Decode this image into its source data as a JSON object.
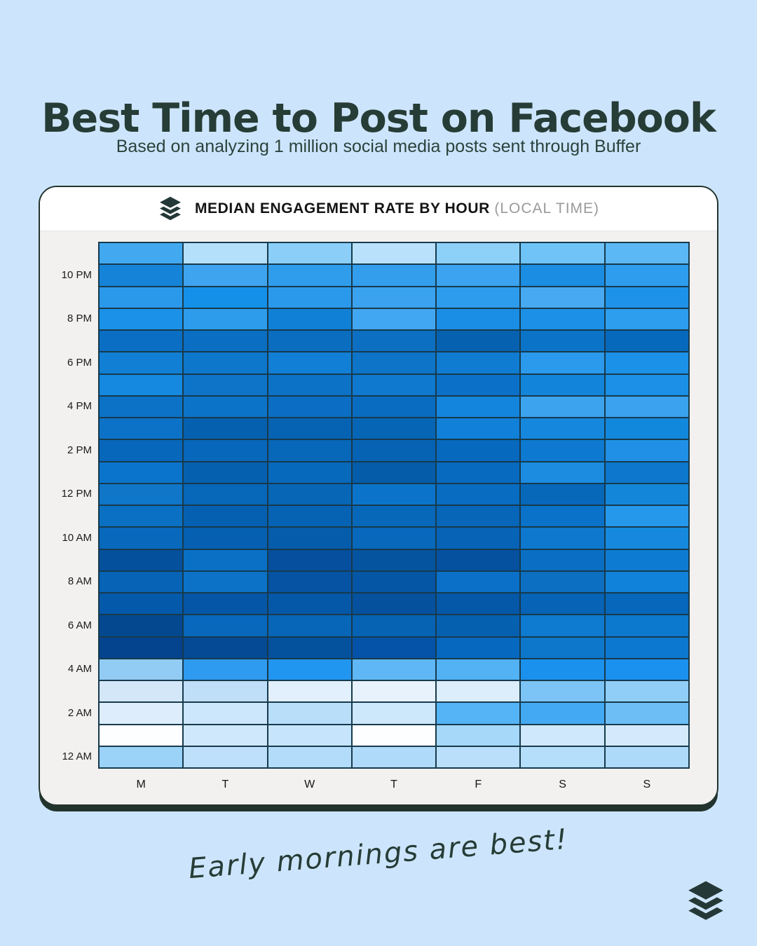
{
  "page": {
    "title": "Best Time to Post on Facebook",
    "subtitle": "Based on analyzing 1 million social media posts sent through Buffer",
    "footer_note": "Early mornings are best!"
  },
  "card_header": {
    "logo_icon": "buffer-layers-icon",
    "title": "MEDIAN ENGAGEMENT RATE BY HOUR",
    "title_suffix": "(LOCAL TIME)"
  },
  "colors": {
    "page_bg": "#cde5fc",
    "ink": "#263c36",
    "card_bg": "#f2f1ef",
    "card_header_bg": "#ffffff",
    "card_outline": "#22332e",
    "grid_line": "#173a4d",
    "logo": "#243837"
  },
  "chart_data": {
    "type": "heatmap",
    "title": "MEDIAN ENGAGEMENT RATE BY HOUR (LOCAL TIME)",
    "x_labels": [
      "M",
      "T",
      "W",
      "T",
      "F",
      "S",
      "S"
    ],
    "row_count": 24,
    "y_ticks": [
      {
        "row": 1,
        "label": "10 PM"
      },
      {
        "row": 3,
        "label": "8 PM"
      },
      {
        "row": 5,
        "label": "6 PM"
      },
      {
        "row": 7,
        "label": "4 PM"
      },
      {
        "row": 9,
        "label": "2 PM"
      },
      {
        "row": 11,
        "label": "12 PM"
      },
      {
        "row": 13,
        "label": "10 AM"
      },
      {
        "row": 15,
        "label": "8 AM"
      },
      {
        "row": 17,
        "label": "6 AM"
      },
      {
        "row": 19,
        "label": "4 AM"
      },
      {
        "row": 21,
        "label": "2 AM"
      },
      {
        "row": 23,
        "label": "12 AM"
      }
    ],
    "grid_colors": [
      [
        "#42a9f1",
        "#b5e0fb",
        "#8bcff8",
        "#b9e1fb",
        "#8dd1f8",
        "#6fc3f6",
        "#5bb8f4"
      ],
      [
        "#1584d8",
        "#3fa4ef",
        "#2f9dec",
        "#339eec",
        "#3ba3ef",
        "#1b8de2",
        "#2e9ded"
      ],
      [
        "#2b99ea",
        "#1590e8",
        "#2b99eb",
        "#3aa2ee",
        "#2d9cec",
        "#47a9f1",
        "#1e92e8"
      ],
      [
        "#1b91e8",
        "#2d9ceb",
        "#0f80d6",
        "#42a7f3",
        "#1a8ee4",
        "#1c90e6",
        "#2d9ded"
      ],
      [
        "#0a6fc4",
        "#0a6ec2",
        "#0a6dc0",
        "#0c6fc2",
        "#0662b0",
        "#0c74c8",
        "#0769bc"
      ],
      [
        "#117fd4",
        "#0d77cc",
        "#117fd6",
        "#0d74c8",
        "#0f7cd2",
        "#2b99ec",
        "#1b91e8"
      ],
      [
        "#1588e0",
        "#0d74c8",
        "#0c72c6",
        "#0e79ce",
        "#0b71c8",
        "#1285da",
        "#1b90e6"
      ],
      [
        "#0b72c6",
        "#0c74c8",
        "#0b6ec4",
        "#0a6cc0",
        "#1485dd",
        "#3ca4ef",
        "#3aa2ee"
      ],
      [
        "#0c72c8",
        "#0660b0",
        "#0663b4",
        "#0765b6",
        "#1080d8",
        "#1588de",
        "#1288dd"
      ],
      [
        "#0767ba",
        "#0767ba",
        "#0767b8",
        "#0663b4",
        "#0769be",
        "#0d79d0",
        "#1f90e5"
      ],
      [
        "#0a74cc",
        "#0660b0",
        "#0769bc",
        "#055ca9",
        "#086abe",
        "#1b8ce0",
        "#0c77cc"
      ],
      [
        "#0f76c8",
        "#0767b8",
        "#0766b6",
        "#0b74ca",
        "#086cc0",
        "#0768ba",
        "#1486da"
      ],
      [
        "#0a70c4",
        "#0660b2",
        "#0663b4",
        "#0768ba",
        "#0766b8",
        "#0a72c8",
        "#2598ec"
      ],
      [
        "#0869bc",
        "#065fb0",
        "#055cab",
        "#0768bc",
        "#0663b6",
        "#0d78ce",
        "#1689de"
      ],
      [
        "#05509c",
        "#0a70c6",
        "#054f9e",
        "#05549f",
        "#0551a0",
        "#0a6fc4",
        "#0e7bd2"
      ],
      [
        "#0663b6",
        "#0b72c8",
        "#0553a2",
        "#0556a4",
        "#0a70c8",
        "#0c6fc2",
        "#1182da"
      ],
      [
        "#0559aa",
        "#0556a6",
        "#0557a8",
        "#05519e",
        "#0558a8",
        "#0663b6",
        "#0767ba"
      ],
      [
        "#04498f",
        "#0768bc",
        "#0766b8",
        "#0663b4",
        "#0660b0",
        "#0e7ad0",
        "#0c78ce"
      ],
      [
        "#04438e",
        "#044a94",
        "#04519e",
        "#0553a8",
        "#0768c0",
        "#0d77cc",
        "#0d78d0"
      ],
      [
        "#92ccf5",
        "#2e9af0",
        "#2196f0",
        "#5fb8f5",
        "#52b2f4",
        "#1b91ee",
        "#1a91ee"
      ],
      [
        "#d4e7f9",
        "#bfdff9",
        "#e2f0fd",
        "#e7f2fd",
        "#dcedfc",
        "#7cc4f6",
        "#90cef7"
      ],
      [
        "#ddedfc",
        "#cce6fb",
        "#b8defa",
        "#cde7fb",
        "#54b4f5",
        "#43a9f2",
        "#6cbef5"
      ],
      [
        "#fdfeff",
        "#cfe8fc",
        "#c6e4fb",
        "#fdfeff",
        "#a5d8f9",
        "#cfe8fc",
        "#d4eafc"
      ],
      [
        "#9bd2f8",
        "#bee0fa",
        "#b3dcfa",
        "#b0daf9",
        "#b9dffb",
        "#b5defa",
        "#aedaf9"
      ]
    ]
  }
}
